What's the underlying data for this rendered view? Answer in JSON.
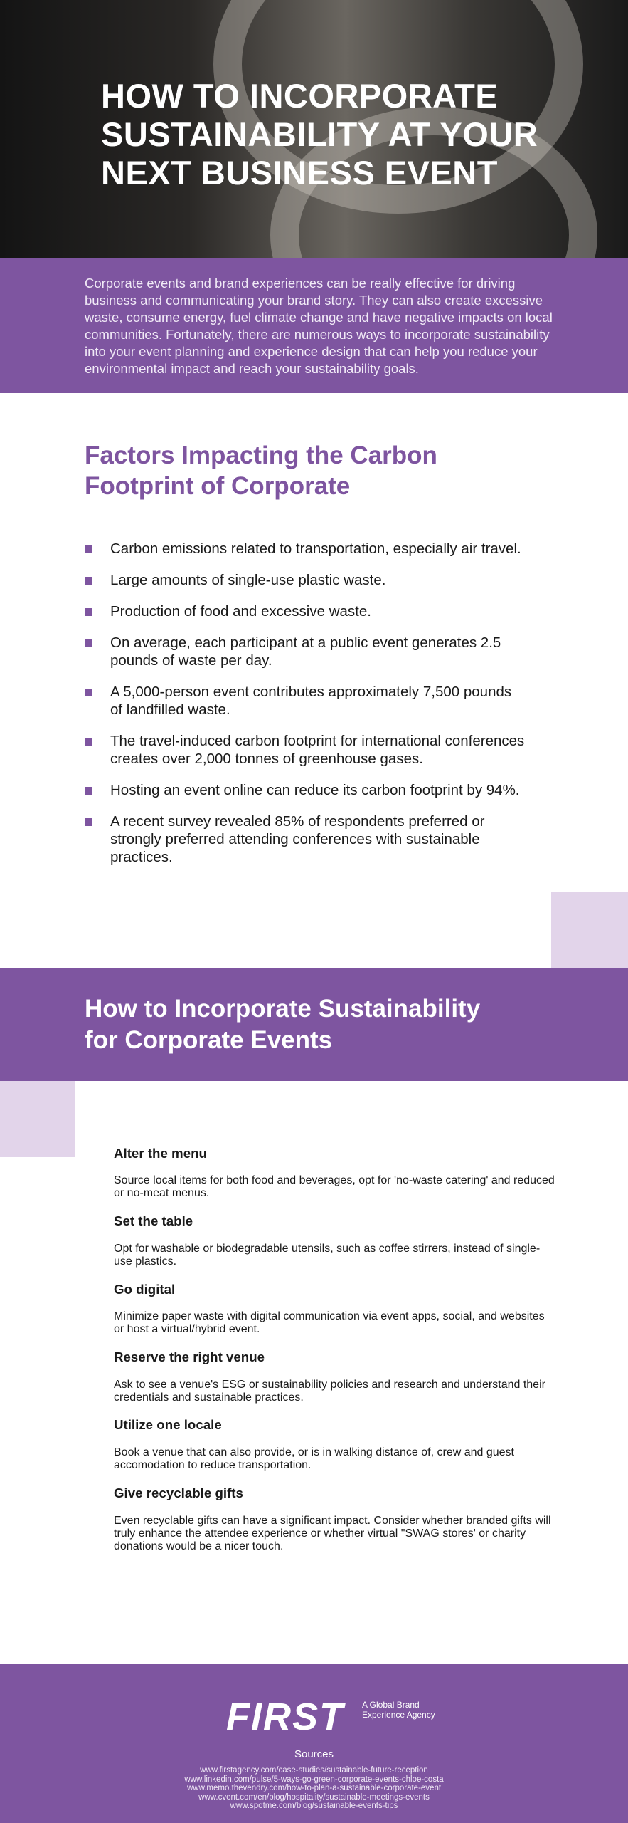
{
  "header": {
    "title": [
      "HOW TO INCORPORATE",
      "SUSTAINABILITY AT YOUR",
      "NEXT BUSINESS EVENT"
    ]
  },
  "intro": "Corporate events and brand experiences can be really effective for driving business and communicating your brand story. They can also create excessive waste, consume energy, fuel climate change and have negative impacts on local communities. Fortunately, there are numerous ways to incorporate sustainability into your event planning and experience design that can help you reduce your environmental impact and reach your sustainability goals.",
  "factors": {
    "heading": [
      "Factors Impacting the Carbon",
      "Footprint of Corporate"
    ],
    "items": [
      "Carbon emissions related to transportation, especially air travel.",
      "Large amounts of single-use plastic waste.",
      "Production of food and excessive waste.",
      "On average, each participant at a public event generates 2.5 pounds of waste per day.",
      "A 5,000-person event contributes approximately 7,500 pounds of landfilled waste.",
      "The travel-induced carbon footprint for international conferences creates over 2,000 tonnes of greenhouse gases.",
      "Hosting an event online can reduce its carbon footprint by 94%.",
      "A recent survey revealed 85% of respondents preferred or strongly preferred attending conferences with sustainable practices."
    ]
  },
  "tips": {
    "heading": [
      "How to Incorporate Sustainability",
      "for Corporate Events"
    ],
    "items": [
      {
        "title": "Alter the menu",
        "body": "Source local items for both food and beverages, opt for 'no-waste catering' and reduced or no-meat menus."
      },
      {
        "title": "Set the table",
        "body": "Opt for washable or biodegradable utensils, such as coffee stirrers, instead of single-use plastics."
      },
      {
        "title": "Go digital",
        "body": "Minimize paper waste with digital communication via event apps, social, and websites or host a virtual/hybrid event."
      },
      {
        "title": "Reserve the right venue",
        "body": "Ask to see a venue's ESG or sustainability policies and research and understand their credentials and sustainable practices."
      },
      {
        "title": "Utilize one locale",
        "body": "Book a venue that can also provide, or is in walking distance of, crew and guest accomodation to reduce transportation."
      },
      {
        "title": "Give recyclable gifts",
        "body": "Even recyclable gifts can have a significant impact. Consider whether branded gifts will truly enhance the attendee experience or whether virtual \"SWAG stores' or charity donations would be a nicer touch."
      }
    ]
  },
  "footer": {
    "logo": "FIRST",
    "tagline": "A Global Brand Experience Agency",
    "sources_label": "Sources",
    "sources": [
      "www.firstagency.com/case-studies/sustainable-future-reception",
      "www.linkedin.com/pulse/5-ways-go-green-corporate-events-chloe-costa",
      "www.memo.thevendry.com/how-to-plan-a-sustainable-corporate-event",
      "www.cvent.com/en/blog/hospitality/sustainable-meetings-events",
      "www.spotme.com/blog/sustainable-events-tips"
    ]
  }
}
